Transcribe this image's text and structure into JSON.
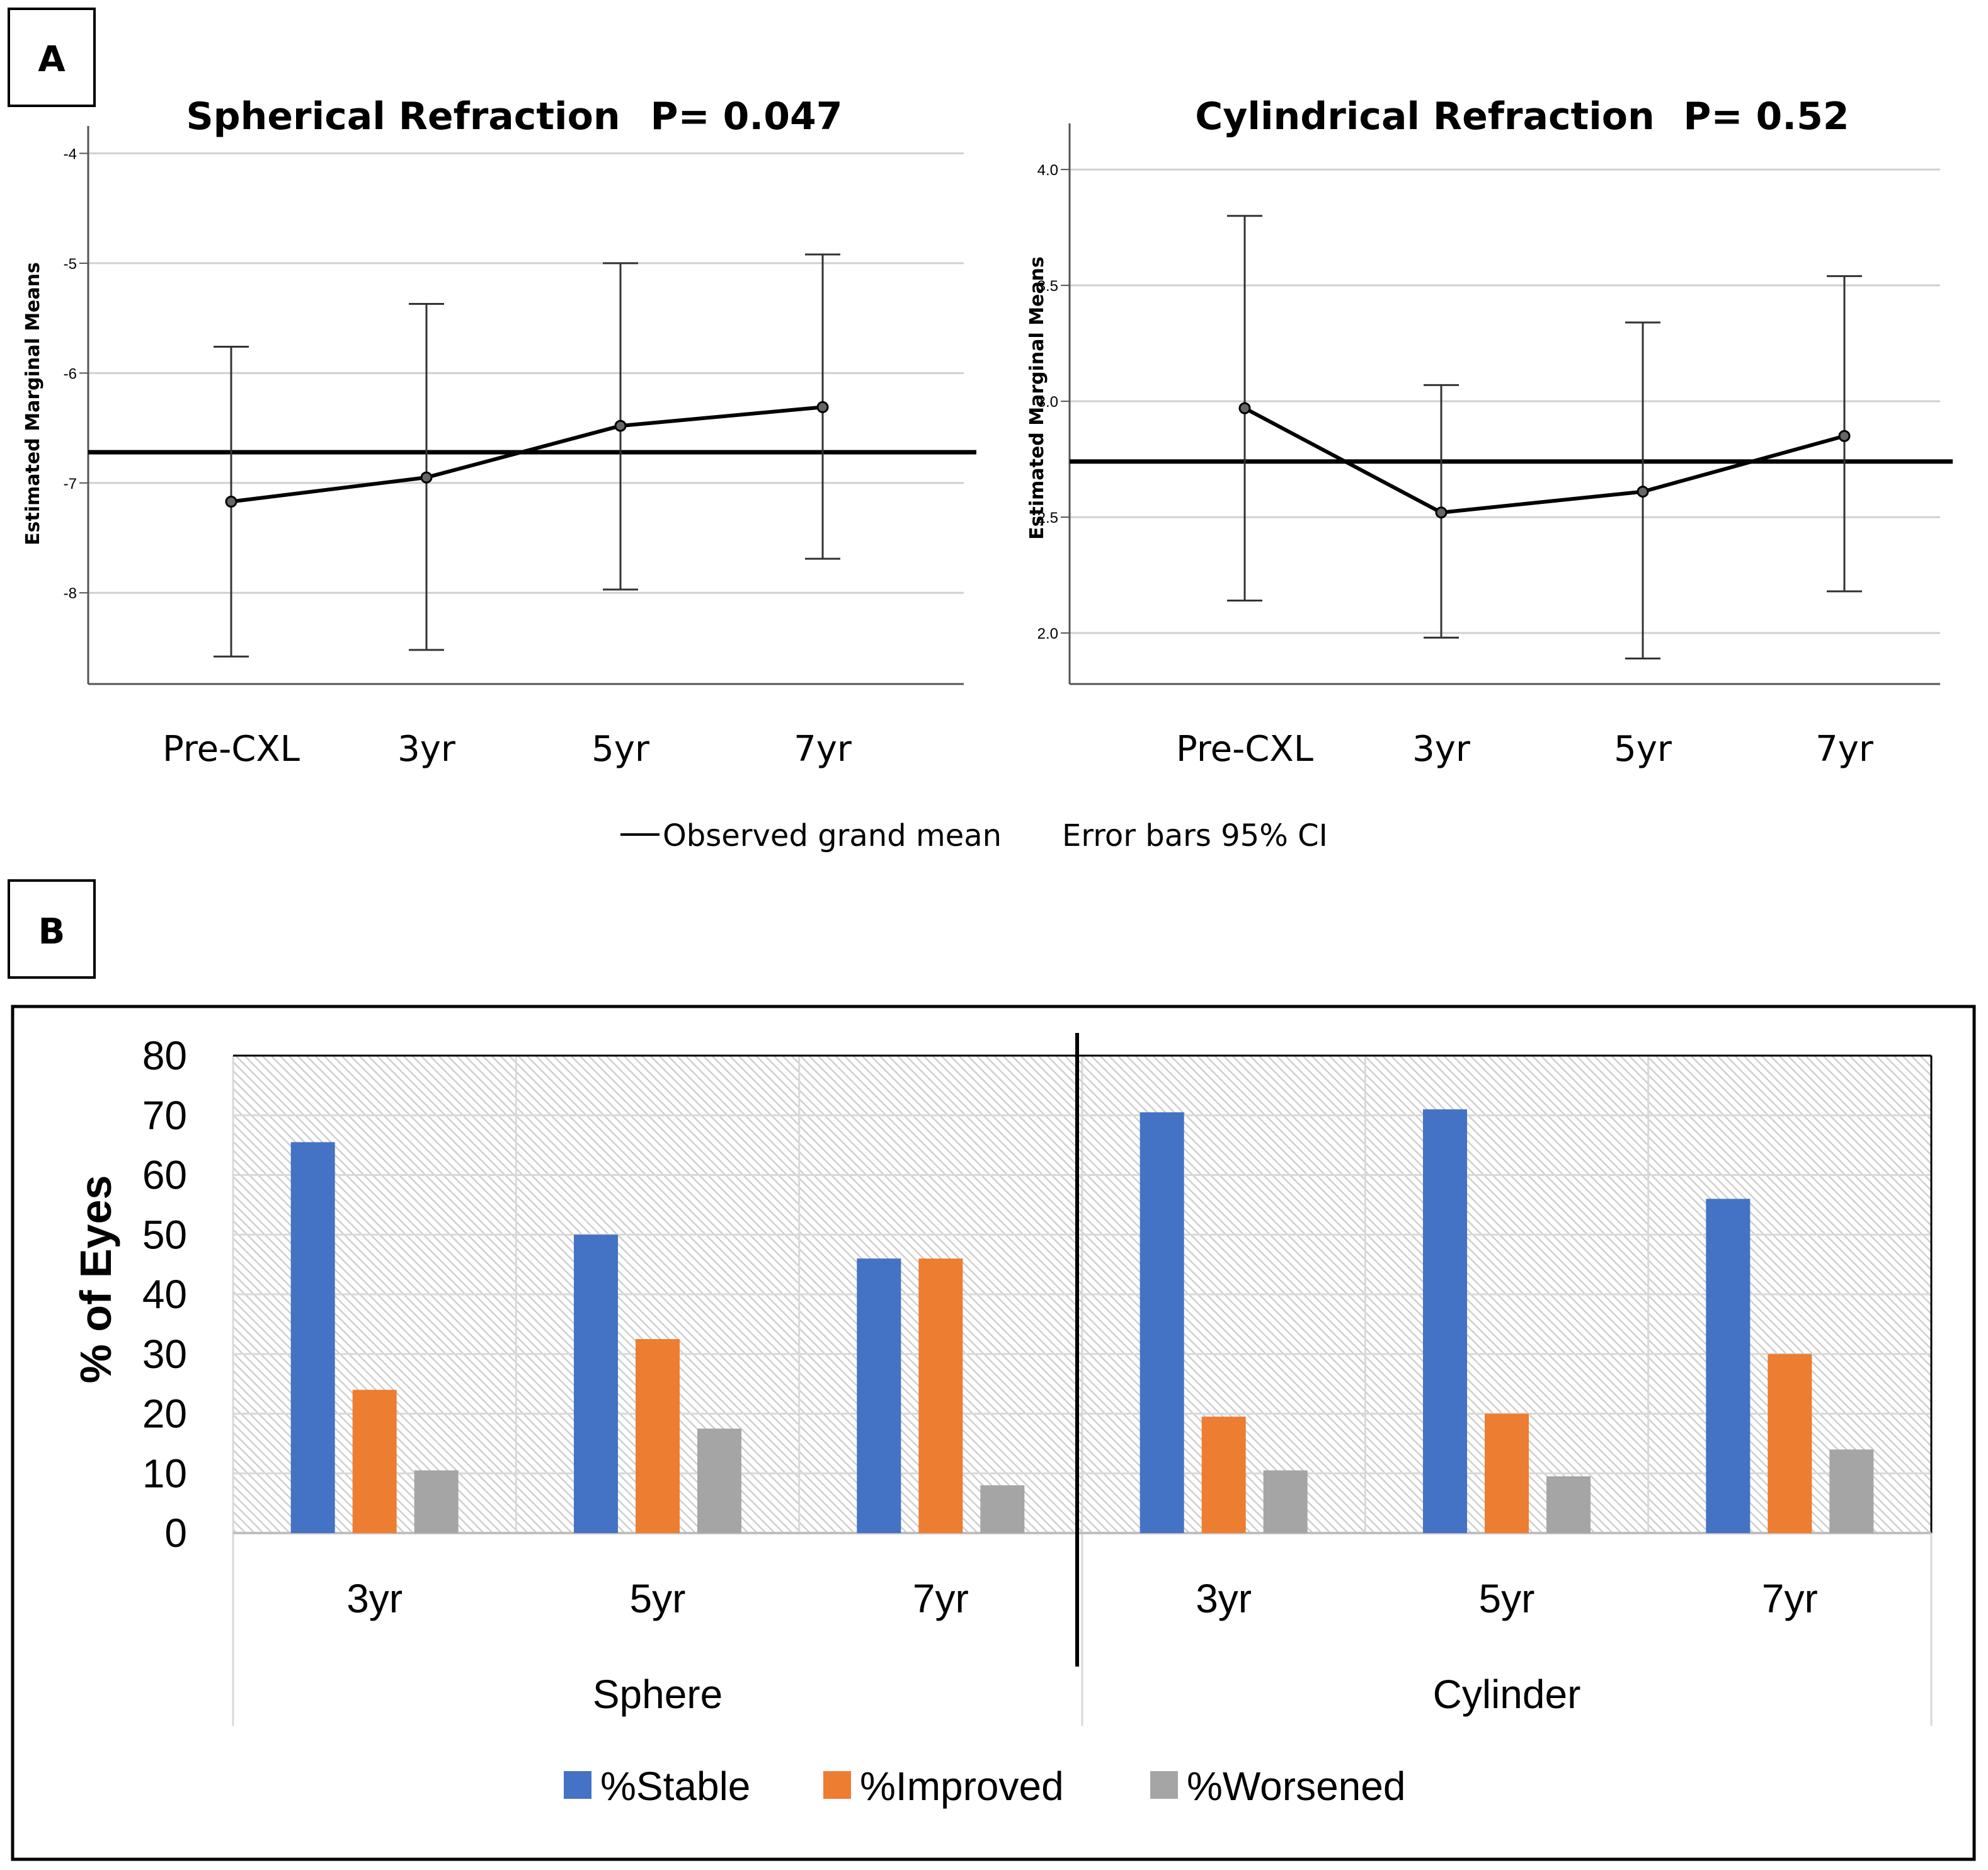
{
  "panels": [
    {
      "label": "A"
    },
    {
      "label": "B"
    }
  ],
  "chart_data": [
    {
      "type": "line",
      "title": "Spherical Refraction",
      "p_value": "P= 0.047",
      "ylabel": "Estimated Marginal Means",
      "xlabel": "",
      "categories": [
        "Pre-CXL",
        "3yr",
        "5yr",
        "7yr"
      ],
      "values": [
        -7.17,
        -6.95,
        -6.48,
        -6.31
      ],
      "ci_lower": [
        -8.58,
        -8.52,
        -7.97,
        -7.69
      ],
      "ci_upper": [
        -5.76,
        -5.37,
        -5.0,
        -4.92
      ],
      "grand_mean": -6.72,
      "yticks": [
        -8,
        -7,
        -6,
        -5,
        -4
      ],
      "ylim": [
        -8.83,
        -3.98
      ],
      "grid": true
    },
    {
      "type": "line",
      "title": "Cylindrical Refraction",
      "p_value": "P= 0.52",
      "ylabel": "Estimated Marginal Means",
      "xlabel": "",
      "categories": [
        "Pre-CXL",
        "3yr",
        "5yr",
        "7yr"
      ],
      "values": [
        2.97,
        2.52,
        2.61,
        2.85
      ],
      "ci_lower": [
        2.14,
        1.98,
        1.89,
        2.18
      ],
      "ci_upper": [
        3.8,
        3.07,
        3.34,
        3.54
      ],
      "grand_mean": 2.74,
      "yticks": [
        "2.0",
        "2.5",
        "3.0",
        "3.5",
        "4.0"
      ],
      "ylim": [
        1.78,
        4.09
      ],
      "grid": true
    },
    {
      "type": "bar",
      "ylabel": "% of Eyes",
      "xlabel": "",
      "groups": [
        "Sphere",
        "Cylinder"
      ],
      "categories": [
        "3yr",
        "5yr",
        "7yr",
        "3yr",
        "5yr",
        "7yr"
      ],
      "series": [
        {
          "name": "%Stable",
          "color": "#4472c4",
          "values": [
            65.5,
            50,
            46,
            70.5,
            71,
            56
          ]
        },
        {
          "name": "%Improved",
          "color": "#ed7d31",
          "values": [
            24,
            32.5,
            46,
            19.5,
            20,
            30
          ]
        },
        {
          "name": "%Worsened",
          "color": "#a5a5a5",
          "values": [
            10.5,
            17.5,
            8,
            10.5,
            9.5,
            14
          ]
        }
      ],
      "yticks": [
        0,
        10,
        20,
        30,
        40,
        50,
        60,
        70,
        80
      ],
      "ylim": [
        0,
        80
      ],
      "legend": "bottom",
      "grid": true
    }
  ],
  "legend_a": {
    "grand_mean": "Observed grand mean",
    "error_bars": "Error bars 95% CI"
  }
}
